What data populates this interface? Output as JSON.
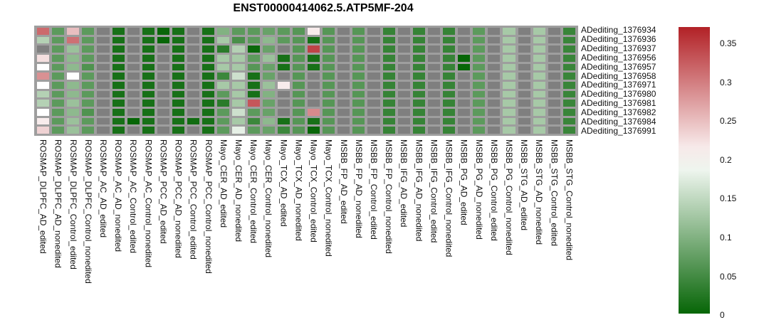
{
  "chart_data": {
    "type": "heatmap",
    "title": "ENST00000414062.5.ATP5MF-204",
    "rows": [
      "ADediting_1376934",
      "ADediting_1376936",
      "ADediting_1376937",
      "ADediting_1376956",
      "ADediting_1376957",
      "ADediting_1376958",
      "ADediting_1376971",
      "ADediting_1376980",
      "ADediting_1376981",
      "ADediting_1376982",
      "ADediting_1376984",
      "ADediting_1376991"
    ],
    "columns": [
      "ROSMAP_DLPFC_AD_edited",
      "ROSMAP_DLPFC_AD_nonedited",
      "ROSMAP_DLPFC_Control_edited",
      "ROSMAP_DLPFC_Control_nonedited",
      "ROSMAP_AC_AD_edited",
      "ROSMAP_AC_AD_nonedited",
      "ROSMAP_AC_Control_edited",
      "ROSMAP_AC_Control_nonedited",
      "ROSMAP_PCC_AD_edited",
      "ROSMAP_PCC_AD_nonedited",
      "ROSMAP_PCC_Control_edited",
      "ROSMAP_PCC_Control_nonedited",
      "Mayo_CER_AD_edited",
      "Mayo_CER_AD_nonedited",
      "Mayo_CER_Control_edited",
      "Mayo_CER_Control_nonedited",
      "Mayo_TCX_AD_edited",
      "Mayo_TCX_AD_nonedited",
      "Mayo_TCX_Control_edited",
      "Mayo_TCX_Control_nonedited",
      "MSBB_FP_AD_edited",
      "MSBB_FP_AD_nonedited",
      "MSBB_FP_Control_edited",
      "MSBB_FP_Control_nonedited",
      "MSBB_IFG_AD_edited",
      "MSBB_IFG_AD_nonedited",
      "MSBB_IFG_Control_edited",
      "MSBB_IFG_Control_nonedited",
      "MSBB_PG_AD_edited",
      "MSBB_PG_AD_nonedited",
      "MSBB_PG_Control_edited",
      "MSBB_PG_Control_nonedited",
      "MSBB_STG_AD_edited",
      "MSBB_STG_AD_nonedited",
      "MSBB_STG_Control_edited",
      "MSBB_STG_Control_nonedited"
    ],
    "values": [
      [
        0.315,
        0.07,
        0.25,
        0.07,
        null,
        0.015,
        null,
        0.015,
        0.003,
        0.015,
        null,
        0.015,
        0.1,
        0.07,
        0.07,
        0.08,
        0.07,
        0.065,
        0.215,
        0.065,
        null,
        0.065,
        null,
        0.04,
        null,
        0.04,
        null,
        0.04,
        null,
        0.07,
        null,
        0.13,
        null,
        0.13,
        null,
        0.042
      ],
      [
        0.14,
        0.07,
        0.31,
        0.07,
        null,
        0.015,
        null,
        0.015,
        0.003,
        0.015,
        null,
        0.015,
        0.13,
        0.055,
        0.07,
        0.11,
        0.07,
        0.065,
        0.015,
        0.065,
        null,
        0.065,
        null,
        0.04,
        null,
        0.04,
        null,
        0.04,
        null,
        0.07,
        null,
        0.13,
        null,
        0.13,
        null,
        0.042
      ],
      [
        null,
        0.07,
        0.12,
        0.07,
        null,
        0.015,
        null,
        0.015,
        null,
        0.015,
        null,
        0.015,
        0.03,
        0.14,
        0.005,
        0.08,
        null,
        0.065,
        0.345,
        0.065,
        null,
        0.065,
        null,
        0.04,
        null,
        0.04,
        null,
        0.04,
        null,
        0.07,
        null,
        0.13,
        null,
        0.13,
        null,
        0.042
      ],
      [
        0.225,
        0.07,
        0.11,
        0.07,
        null,
        0.015,
        null,
        0.015,
        null,
        0.015,
        null,
        0.015,
        0.13,
        0.13,
        0.07,
        0.12,
        0.015,
        0.065,
        0.015,
        0.065,
        null,
        0.065,
        null,
        0.04,
        null,
        0.04,
        null,
        0.04,
        0.002,
        0.07,
        null,
        0.13,
        null,
        0.13,
        null,
        0.042
      ],
      [
        0.2,
        0.07,
        0.11,
        0.06,
        null,
        0.015,
        null,
        0.015,
        null,
        0.015,
        null,
        0.015,
        0.13,
        0.13,
        0.065,
        0.08,
        0.015,
        0.065,
        0.015,
        0.065,
        null,
        0.065,
        null,
        0.04,
        null,
        0.04,
        null,
        0.04,
        0.002,
        0.07,
        null,
        0.13,
        null,
        0.13,
        null,
        0.042
      ],
      [
        0.285,
        0.07,
        0.2,
        0.07,
        null,
        0.015,
        null,
        0.015,
        null,
        0.015,
        null,
        0.015,
        0.045,
        0.16,
        0.015,
        0.08,
        null,
        0.065,
        null,
        0.065,
        null,
        0.065,
        null,
        0.04,
        null,
        0.04,
        null,
        0.04,
        null,
        0.07,
        null,
        0.13,
        null,
        0.13,
        null,
        0.042
      ],
      [
        0.2,
        0.07,
        0.11,
        0.07,
        null,
        0.015,
        null,
        0.015,
        null,
        0.015,
        null,
        0.015,
        0.13,
        0.13,
        0.015,
        0.12,
        0.215,
        0.065,
        null,
        0.065,
        null,
        0.065,
        null,
        0.04,
        null,
        0.04,
        null,
        0.04,
        null,
        0.07,
        null,
        0.13,
        null,
        0.13,
        null,
        0.042
      ],
      [
        0.14,
        0.07,
        0.11,
        0.07,
        null,
        0.015,
        null,
        0.015,
        null,
        0.015,
        null,
        0.015,
        0.07,
        0.13,
        0.015,
        0.1,
        null,
        0.065,
        null,
        0.065,
        null,
        0.065,
        null,
        0.04,
        null,
        0.04,
        null,
        0.04,
        null,
        0.07,
        null,
        0.13,
        null,
        0.13,
        null,
        0.042
      ],
      [
        0.14,
        0.07,
        0.12,
        0.07,
        null,
        0.015,
        null,
        0.015,
        null,
        0.015,
        null,
        0.015,
        0.03,
        0.13,
        0.33,
        0.08,
        null,
        0.065,
        null,
        0.065,
        null,
        0.065,
        null,
        0.04,
        null,
        0.04,
        null,
        0.04,
        null,
        0.07,
        null,
        0.13,
        null,
        0.13,
        null,
        0.042
      ],
      [
        0.2,
        0.07,
        0.11,
        0.06,
        null,
        0.015,
        null,
        0.015,
        null,
        0.015,
        null,
        0.015,
        0.07,
        0.16,
        0.07,
        0.08,
        null,
        0.065,
        0.29,
        0.065,
        null,
        0.065,
        null,
        0.04,
        null,
        0.04,
        null,
        0.04,
        null,
        0.07,
        null,
        0.13,
        null,
        0.13,
        null,
        0.042
      ],
      [
        0.215,
        0.07,
        0.12,
        0.07,
        null,
        0.015,
        0.002,
        0.015,
        null,
        0.015,
        0.01,
        0.015,
        0.07,
        0.13,
        0.045,
        0.11,
        0.015,
        0.065,
        0.015,
        0.065,
        null,
        0.065,
        null,
        0.04,
        null,
        0.04,
        null,
        0.04,
        null,
        0.07,
        null,
        0.13,
        null,
        0.13,
        null,
        0.042
      ],
      [
        0.235,
        0.07,
        0.12,
        0.07,
        null,
        0.015,
        null,
        0.015,
        null,
        0.015,
        null,
        0.015,
        0.07,
        0.18,
        0.07,
        0.08,
        0.045,
        0.065,
        0.003,
        0.065,
        null,
        0.065,
        null,
        0.04,
        null,
        0.04,
        null,
        0.04,
        null,
        0.07,
        null,
        0.13,
        null,
        0.13,
        null,
        0.042
      ]
    ],
    "value_domain": [
      0,
      0.372
    ],
    "color_scale": {
      "low": "#046404",
      "mid": "#ffffff",
      "high": "#b22025",
      "midpoint": 0.2
    },
    "na_color": "#7f7f7f",
    "grid_gap_color": "#9e9e9e",
    "legend_position": "right",
    "colorbar": {
      "ticks": [
        "0.35",
        "0.3",
        "0.25",
        "0.2",
        "0.15",
        "0.1",
        "0.05",
        "0"
      ]
    }
  }
}
